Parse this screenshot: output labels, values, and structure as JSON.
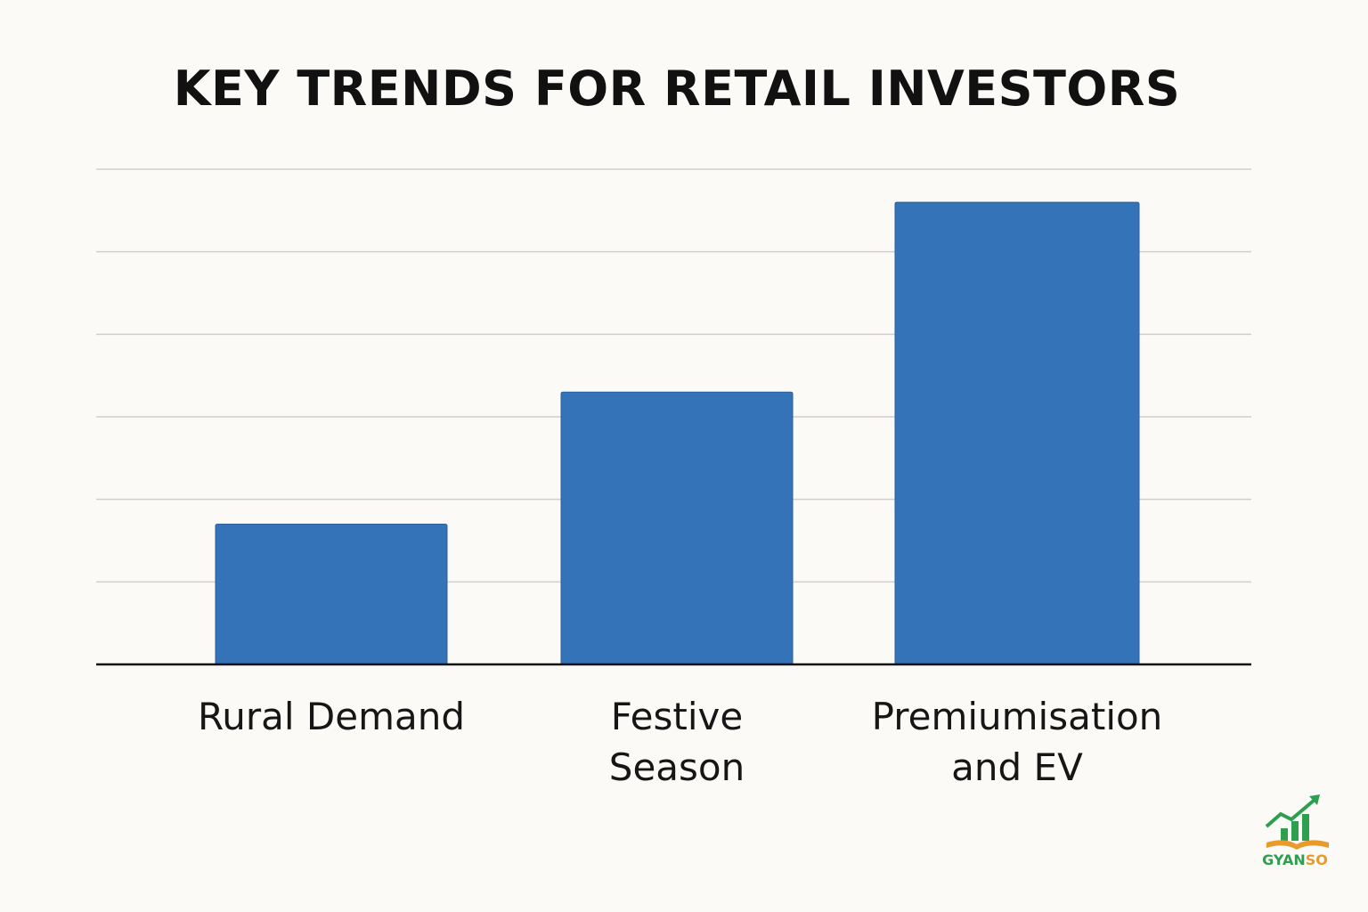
{
  "chart_data": {
    "type": "bar",
    "title": "KEY TRENDS FOR RETAIL INVESTORS",
    "categories": [
      "Rural Demand",
      "Festive Season",
      "Premiumisation and EV"
    ],
    "category_lines": [
      [
        "Rural Demand"
      ],
      [
        "Festive",
        "Season"
      ],
      [
        "Premiumisation",
        "and EV"
      ]
    ],
    "values": [
      1.7,
      3.3,
      5.6
    ],
    "ylim": [
      0,
      6
    ],
    "grid": true,
    "bar_color": "#3473b8",
    "xlabel": "",
    "ylabel": ""
  },
  "logo": {
    "text_main": "GYAN",
    "text_accent": "SO",
    "green": "#2e9e4f",
    "orange": "#e89a2b"
  }
}
